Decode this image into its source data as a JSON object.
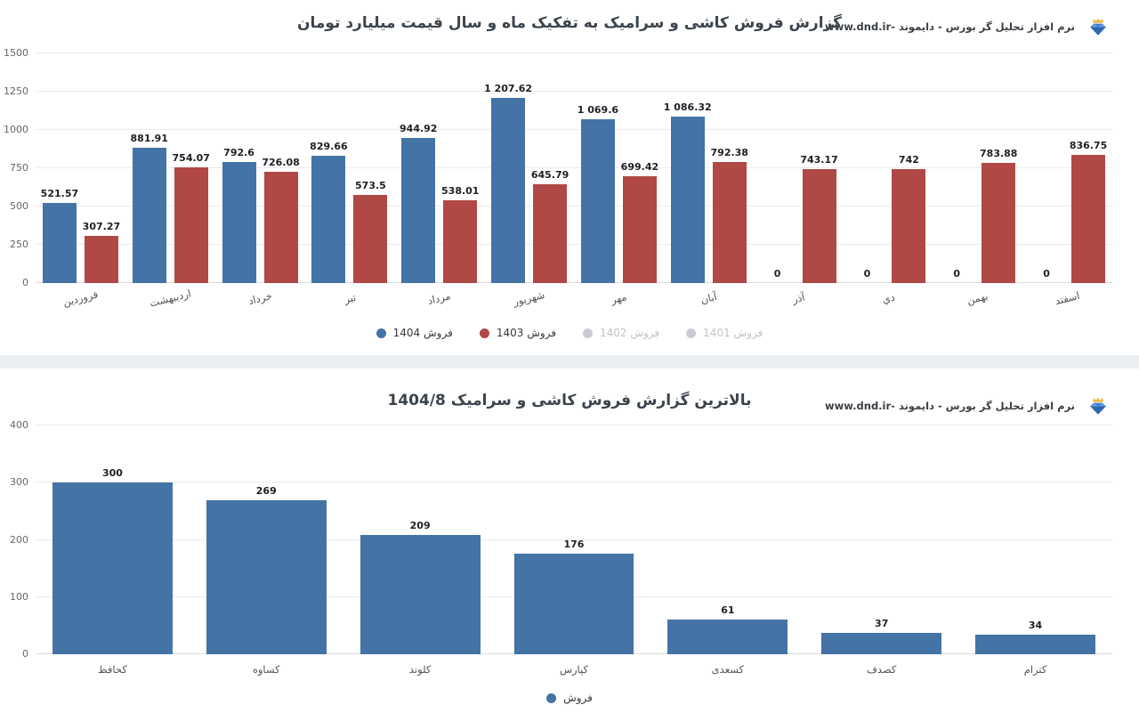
{
  "brand": {
    "text": "نرم افزار تحلیل گر بورس - دایموند -www.dnd.ir",
    "logo": "diamond-crown-logo"
  },
  "colors": {
    "series_blue": "#4473a6",
    "series_red": "#b04846",
    "disabled": "#c9cdd1",
    "grid": "#ebebeb",
    "axis_line": "#dcdcdc",
    "title": "#3b434c",
    "value_label": "#1c2025",
    "tick_label": "#555555"
  },
  "chart_data": [
    {
      "type": "bar",
      "title": "گزارش فروش کاشی و سرامیک به تفکیک ماه و سال قیمت میلیارد تومان",
      "categories": [
        "فروردین",
        "اردیبهشت",
        "خرداد",
        "تیر",
        "مرداد",
        "شهریور",
        "مهر",
        "آبان",
        "آذر",
        "دي",
        "بهمن",
        "اسفند"
      ],
      "series": [
        {
          "name": "فروش 1404",
          "color": "#4473a6",
          "enabled": true,
          "values": [
            521.57,
            881.91,
            792.6,
            829.66,
            944.92,
            1207.62,
            1069.6,
            1086.32,
            0,
            0,
            0,
            0
          ],
          "labels": [
            "521.57",
            "881.91",
            "792.6",
            "829.66",
            "944.92",
            "1 207.62",
            "1 069.6",
            "1 086.32",
            "0",
            "0",
            "0",
            "0"
          ]
        },
        {
          "name": "فروش 1403",
          "color": "#b04846",
          "enabled": true,
          "values": [
            307.27,
            754.07,
            726.08,
            573.5,
            538.01,
            645.79,
            699.42,
            792.38,
            743.17,
            742,
            783.88,
            836.75
          ],
          "labels": [
            "307.27",
            "754.07",
            "726.08",
            "573.5",
            "538.01",
            "645.79",
            "699.42",
            "792.38",
            "743.17",
            "742",
            "783.88",
            "836.75"
          ]
        },
        {
          "name": "فروش 1402",
          "enabled": false
        },
        {
          "name": "فروش 1401",
          "enabled": false
        }
      ],
      "ylim": [
        0,
        1500
      ],
      "yticks": [
        0,
        250,
        500,
        750,
        1000,
        1250,
        1500
      ],
      "grid": true,
      "legend_position": "bottom"
    },
    {
      "type": "bar",
      "title": "بالاترین گزارش فروش کاشی و سرامیک 1404/8",
      "categories": [
        "کحافظ",
        "کساوه",
        "کلوند",
        "کپارس",
        "کسعدی",
        "کصدف",
        "کترام"
      ],
      "series": [
        {
          "name": "فروش",
          "color": "#4473a6",
          "enabled": true,
          "values": [
            300,
            269,
            209,
            176,
            61,
            37,
            34
          ],
          "labels": [
            "300",
            "269",
            "209",
            "176",
            "61",
            "37",
            "34"
          ]
        }
      ],
      "ylim": [
        0,
        400
      ],
      "yticks": [
        0,
        100,
        200,
        300,
        400
      ],
      "grid": true,
      "legend_position": "bottom"
    }
  ]
}
